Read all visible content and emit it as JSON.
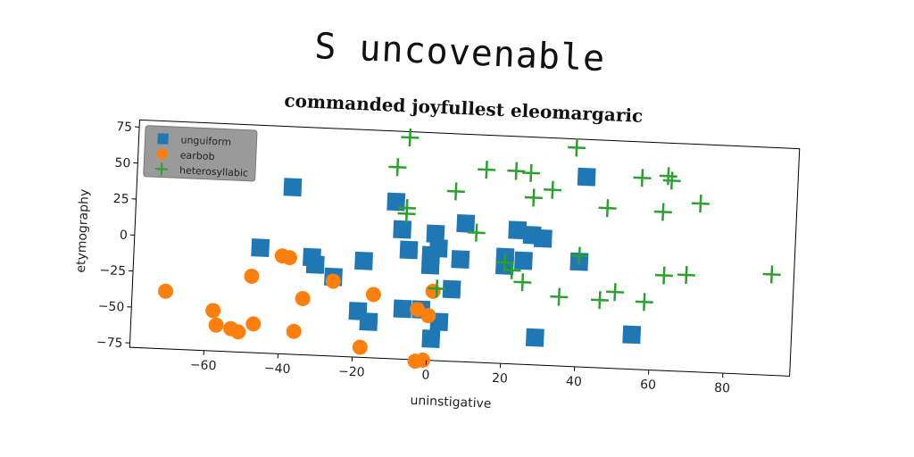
{
  "figure_title": "S uncovenable",
  "chart_data": {
    "type": "scatter",
    "title": "commanded joyfullest eleomargaric",
    "xlabel": "uninstigative",
    "ylabel": "etymography",
    "xlim": [
      -80,
      98
    ],
    "ylim": [
      -78,
      80
    ],
    "xticks": [
      -60,
      -40,
      -20,
      0,
      20,
      40,
      60,
      80
    ],
    "yticks": [
      -75,
      -50,
      -25,
      0,
      25,
      50,
      75
    ],
    "grid": false,
    "legend_position": "top-left",
    "series": [
      {
        "name": "unguiform",
        "marker": "square",
        "color": "#1f77b4",
        "points": [
          [
            -38,
            38
          ],
          [
            -10,
            31
          ],
          [
            -8,
            12
          ],
          [
            -6,
            -2
          ],
          [
            0,
            -12
          ],
          [
            1,
            10
          ],
          [
            2,
            0
          ],
          [
            0,
            -5
          ],
          [
            9,
            18
          ],
          [
            8,
            -7
          ],
          [
            6,
            -28
          ],
          [
            -18,
            -11
          ],
          [
            -7,
            -43
          ],
          [
            -2,
            -43
          ],
          [
            -19,
            -46
          ],
          [
            -16,
            -53
          ],
          [
            3,
            -51
          ],
          [
            1,
            -63
          ],
          [
            41,
            54
          ],
          [
            23,
            15
          ],
          [
            27,
            12
          ],
          [
            30,
            10
          ],
          [
            20,
            -4
          ],
          [
            25,
            -6
          ],
          [
            20,
            -10
          ],
          [
            40,
            -5
          ],
          [
            29,
            -59
          ],
          [
            55,
            -54
          ],
          [
            -46,
            -5
          ],
          [
            -32,
            -10
          ],
          [
            -31,
            -15
          ],
          [
            -26,
            -23
          ]
        ]
      },
      {
        "name": "earbob",
        "marker": "circle",
        "color": "#ff7f0e",
        "points": [
          [
            -71,
            -38
          ],
          [
            -58,
            -50
          ],
          [
            -57,
            -60
          ],
          [
            -53,
            -62
          ],
          [
            -51,
            -64
          ],
          [
            -47,
            -58
          ],
          [
            -48,
            -25
          ],
          [
            -40,
            -10
          ],
          [
            -38,
            -11
          ],
          [
            -36,
            -62
          ],
          [
            -34,
            -39
          ],
          [
            -26,
            -26
          ],
          [
            -18,
            -71
          ],
          [
            -15,
            -34
          ],
          [
            -3,
            -43
          ],
          [
            0,
            -47
          ],
          [
            1,
            -30
          ],
          [
            -3,
            -79
          ],
          [
            -1,
            -78
          ]
        ]
      },
      {
        "name": "heterosyllabic",
        "marker": "plus",
        "color": "#2ca02c",
        "points": [
          [
            -7,
            76
          ],
          [
            -10,
            55
          ],
          [
            -7,
            23
          ],
          [
            -7,
            27
          ],
          [
            6,
            40
          ],
          [
            14,
            56
          ],
          [
            22,
            56
          ],
          [
            26,
            55
          ],
          [
            27,
            38
          ],
          [
            32,
            44
          ],
          [
            38,
            74
          ],
          [
            12,
            12
          ],
          [
            47,
            33
          ],
          [
            56,
            55
          ],
          [
            63,
            57
          ],
          [
            64,
            54
          ],
          [
            72,
            39
          ],
          [
            62,
            32
          ],
          [
            20,
            -8
          ],
          [
            22,
            -13
          ],
          [
            25,
            -21
          ],
          [
            35,
            -30
          ],
          [
            40,
            -1
          ],
          [
            46,
            -31
          ],
          [
            50,
            -25
          ],
          [
            58,
            -31
          ],
          [
            63,
            -12
          ],
          [
            69,
            -11
          ],
          [
            92,
            -8
          ],
          [
            2,
            -28
          ]
        ]
      }
    ]
  }
}
